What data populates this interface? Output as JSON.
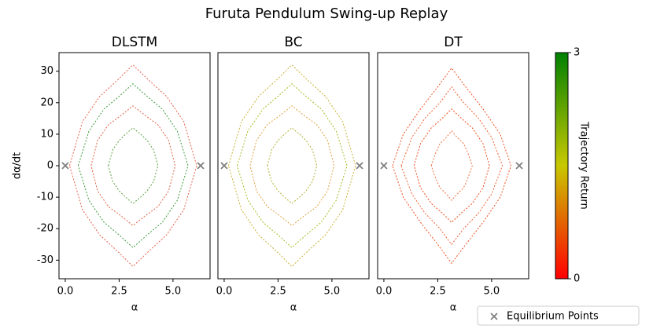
{
  "title": "Furuta Pendulum Swing-up Replay",
  "equilibrium": {
    "name": "Equilibrium Points",
    "color": "#808080",
    "x": [
      0,
      6.283
    ],
    "y": [
      0,
      0
    ]
  },
  "colorbar": {
    "label": "Trajectory Return",
    "lim": [
      0,
      3
    ],
    "ticks": [
      0,
      3
    ],
    "colors": [
      "#ff0000",
      "#c8c800",
      "#008000"
    ]
  },
  "chart_data": [
    {
      "type": "line",
      "title": "DLSTM",
      "xlabel": "α",
      "ylabel": "dα/dt",
      "xlim": [
        -0.29,
        6.72
      ],
      "ylim": [
        -35.9,
        35.9
      ],
      "xticks": [
        {
          "value": 0,
          "label": "0.0"
        },
        {
          "value": 2.5,
          "label": "2.5"
        },
        {
          "value": 5,
          "label": "5.0"
        }
      ],
      "yticks": [
        -30,
        -20,
        -10,
        0,
        10,
        20,
        30
      ],
      "series": [
        {
          "color": "#e8604a",
          "x": [
            0.2,
            0.8,
            1.6,
            2.4,
            3.14,
            3.9,
            4.7,
            5.5,
            6.1,
            5.5,
            4.7,
            3.9,
            3.14,
            2.4,
            1.6,
            0.8,
            0.2
          ],
          "values": [
            0,
            14,
            22,
            27,
            32,
            27,
            22,
            14,
            0,
            -14,
            -22,
            -27,
            -32,
            -27,
            -22,
            -14,
            0
          ]
        },
        {
          "color": "#3a9a3a",
          "x": [
            0.6,
            1.1,
            1.8,
            2.5,
            3.14,
            3.8,
            4.5,
            5.2,
            5.7,
            5.2,
            4.5,
            3.8,
            3.14,
            2.5,
            1.8,
            1.1,
            0.6
          ],
          "values": [
            0,
            11,
            18,
            22,
            26,
            22,
            18,
            11,
            0,
            -11,
            -18,
            -22,
            -26,
            -22,
            -18,
            -11,
            0
          ]
        },
        {
          "color": "#e06040",
          "x": [
            1.2,
            1.5,
            2.0,
            2.6,
            3.14,
            3.7,
            4.3,
            4.8,
            5.1,
            4.8,
            4.3,
            3.7,
            3.14,
            2.6,
            2.0,
            1.5,
            1.2
          ],
          "values": [
            0,
            8,
            13,
            16,
            19,
            16,
            13,
            8,
            0,
            -8,
            -13,
            -16,
            -19,
            -16,
            -13,
            -8,
            0
          ]
        },
        {
          "color": "#5aa040",
          "x": [
            2.0,
            2.2,
            2.5,
            2.8,
            3.14,
            3.5,
            3.8,
            4.1,
            4.3,
            4.1,
            3.8,
            3.5,
            3.14,
            2.8,
            2.5,
            2.2,
            2.0
          ],
          "values": [
            0,
            5,
            8,
            10,
            12,
            10,
            8,
            5,
            0,
            -5,
            -8,
            -10,
            -12,
            -10,
            -8,
            -5,
            0
          ]
        }
      ]
    },
    {
      "type": "line",
      "title": "BC",
      "xlabel": "α",
      "xlim": [
        -0.29,
        6.72
      ],
      "ylim": [
        -35.9,
        35.9
      ],
      "xticks": [
        {
          "value": 0,
          "label": "0.0"
        },
        {
          "value": 2.5,
          "label": "2.5"
        },
        {
          "value": 5,
          "label": "5.0"
        }
      ],
      "series": [
        {
          "color": "#c8b030",
          "x": [
            0.2,
            0.8,
            1.6,
            2.4,
            3.14,
            3.9,
            4.7,
            5.5,
            6.1,
            5.5,
            4.7,
            3.9,
            3.14,
            2.4,
            1.6,
            0.8,
            0.2
          ],
          "values": [
            0,
            14,
            22,
            27,
            32,
            27,
            22,
            14,
            0,
            -14,
            -22,
            -27,
            -32,
            -27,
            -22,
            -14,
            0
          ]
        },
        {
          "color": "#a8b820",
          "x": [
            0.6,
            1.1,
            1.8,
            2.5,
            3.14,
            3.8,
            4.5,
            5.2,
            5.7,
            5.2,
            4.5,
            3.8,
            3.14,
            2.5,
            1.8,
            1.1,
            0.6
          ],
          "values": [
            0,
            11,
            18,
            22,
            26,
            22,
            18,
            11,
            0,
            -11,
            -18,
            -22,
            -26,
            -22,
            -18,
            -11,
            0
          ]
        },
        {
          "color": "#e0a040",
          "x": [
            1.2,
            1.5,
            2.0,
            2.6,
            3.14,
            3.7,
            4.3,
            4.8,
            5.1,
            4.8,
            4.3,
            3.7,
            3.14,
            2.6,
            2.0,
            1.5,
            1.2
          ],
          "values": [
            0,
            8,
            13,
            16,
            19,
            16,
            13,
            8,
            0,
            -8,
            -13,
            -16,
            -19,
            -16,
            -13,
            -8,
            0
          ]
        },
        {
          "color": "#b0b030",
          "x": [
            2.0,
            2.2,
            2.5,
            2.8,
            3.14,
            3.5,
            3.8,
            4.1,
            4.3,
            4.1,
            3.8,
            3.5,
            3.14,
            2.8,
            2.5,
            2.2,
            2.0
          ],
          "values": [
            0,
            5,
            8,
            10,
            12,
            10,
            8,
            5,
            0,
            -5,
            -8,
            -10,
            -12,
            -10,
            -8,
            -5,
            0
          ]
        }
      ]
    },
    {
      "type": "line",
      "title": "DT",
      "xlabel": "α",
      "xlim": [
        -0.29,
        6.72
      ],
      "ylim": [
        -35.9,
        35.9
      ],
      "xticks": [
        {
          "value": 0,
          "label": "0.0"
        },
        {
          "value": 2.5,
          "label": "2.5"
        },
        {
          "value": 5,
          "label": "5.0"
        }
      ],
      "series": [
        {
          "color": "#f05020",
          "x": [
            0.4,
            0.9,
            1.7,
            2.5,
            3.14,
            3.8,
            4.6,
            5.4,
            5.9,
            5.4,
            4.6,
            3.8,
            3.14,
            2.5,
            1.7,
            0.9,
            0.4
          ],
          "values": [
            0,
            10,
            18,
            25,
            31,
            25,
            18,
            10,
            0,
            -10,
            -18,
            -25,
            -31,
            -25,
            -18,
            -10,
            0
          ]
        },
        {
          "color": "#f06030",
          "x": [
            0.8,
            1.3,
            1.9,
            2.6,
            3.14,
            3.7,
            4.4,
            5.0,
            5.5,
            5.0,
            4.4,
            3.7,
            3.14,
            2.6,
            1.9,
            1.3,
            0.8
          ],
          "values": [
            0,
            9,
            15,
            20,
            25,
            20,
            15,
            9,
            0,
            -9,
            -15,
            -20,
            -25,
            -20,
            -15,
            -9,
            0
          ]
        },
        {
          "color": "#f04818",
          "x": [
            1.4,
            1.7,
            2.2,
            2.7,
            3.14,
            3.6,
            4.1,
            4.6,
            4.9,
            4.6,
            4.1,
            3.6,
            3.14,
            2.7,
            2.2,
            1.7,
            1.4
          ],
          "values": [
            0,
            7,
            12,
            15,
            18,
            15,
            12,
            7,
            0,
            -7,
            -12,
            -15,
            -18,
            -15,
            -12,
            -7,
            0
          ]
        },
        {
          "color": "#f07040",
          "x": [
            2.2,
            2.4,
            2.6,
            2.9,
            3.14,
            3.4,
            3.7,
            3.9,
            4.1,
            3.9,
            3.7,
            3.4,
            3.14,
            2.9,
            2.6,
            2.4,
            2.2
          ],
          "values": [
            0,
            4,
            7,
            9,
            11,
            9,
            7,
            4,
            0,
            -4,
            -7,
            -9,
            -11,
            -9,
            -7,
            -4,
            0
          ]
        }
      ]
    }
  ]
}
